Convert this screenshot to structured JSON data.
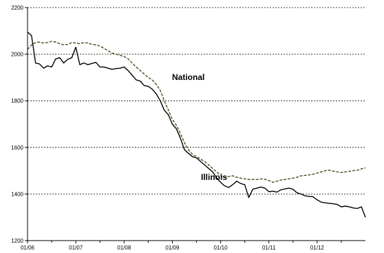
{
  "chart_data": {
    "type": "line",
    "title": "",
    "xlabel": "",
    "ylabel": "",
    "ylim": [
      1200,
      2200
    ],
    "y_ticks": [
      "1200",
      "1400",
      "1600",
      "1800",
      "2000",
      "2200"
    ],
    "x_ticks": [
      "01/06",
      "01/07",
      "01/08",
      "01/09",
      "01/10",
      "01/11",
      "01/12"
    ],
    "grid": "horizontal dotted",
    "colors": {
      "illinois": "#000000",
      "national": "#4a4a1a",
      "axis": "#000000",
      "grid": "#000000"
    },
    "series": [
      {
        "name": "Illinois",
        "style": "solid",
        "values": [
          2095,
          2080,
          1962,
          1958,
          1940,
          1950,
          1945,
          1980,
          1985,
          1962,
          1978,
          1985,
          2030,
          1955,
          1962,
          1955,
          1960,
          1965,
          1945,
          1945,
          1940,
          1935,
          1938,
          1940,
          1945,
          1930,
          1910,
          1890,
          1885,
          1865,
          1862,
          1850,
          1830,
          1800,
          1760,
          1740,
          1700,
          1680,
          1640,
          1590,
          1575,
          1560,
          1555,
          1540,
          1525,
          1510,
          1495,
          1470,
          1450,
          1435,
          1428,
          1440,
          1455,
          1445,
          1440,
          1385,
          1420,
          1425,
          1430,
          1425,
          1410,
          1412,
          1408,
          1418,
          1422,
          1425,
          1420,
          1405,
          1400,
          1392,
          1390,
          1388,
          1375,
          1365,
          1362,
          1360,
          1358,
          1355,
          1345,
          1348,
          1345,
          1340,
          1338,
          1345,
          1300
        ]
      },
      {
        "name": "National",
        "style": "dashed",
        "values": [
          2020,
          2040,
          2050,
          2052,
          2048,
          2050,
          2055,
          2052,
          2045,
          2040,
          2042,
          2050,
          2048,
          2045,
          2050,
          2048,
          2042,
          2040,
          2035,
          2025,
          2015,
          2005,
          2000,
          1995,
          1990,
          1980,
          1962,
          1945,
          1930,
          1915,
          1900,
          1890,
          1870,
          1845,
          1800,
          1760,
          1720,
          1695,
          1660,
          1620,
          1590,
          1570,
          1560,
          1550,
          1540,
          1525,
          1510,
          1495,
          1480,
          1470,
          1475,
          1478,
          1472,
          1468,
          1465,
          1462,
          1463,
          1462,
          1465,
          1463,
          1458,
          1450,
          1455,
          1460,
          1462,
          1465,
          1468,
          1472,
          1478,
          1480,
          1482,
          1485,
          1490,
          1495,
          1500,
          1502,
          1498,
          1495,
          1492,
          1495,
          1497,
          1500,
          1502,
          1508,
          1512
        ]
      }
    ]
  }
}
